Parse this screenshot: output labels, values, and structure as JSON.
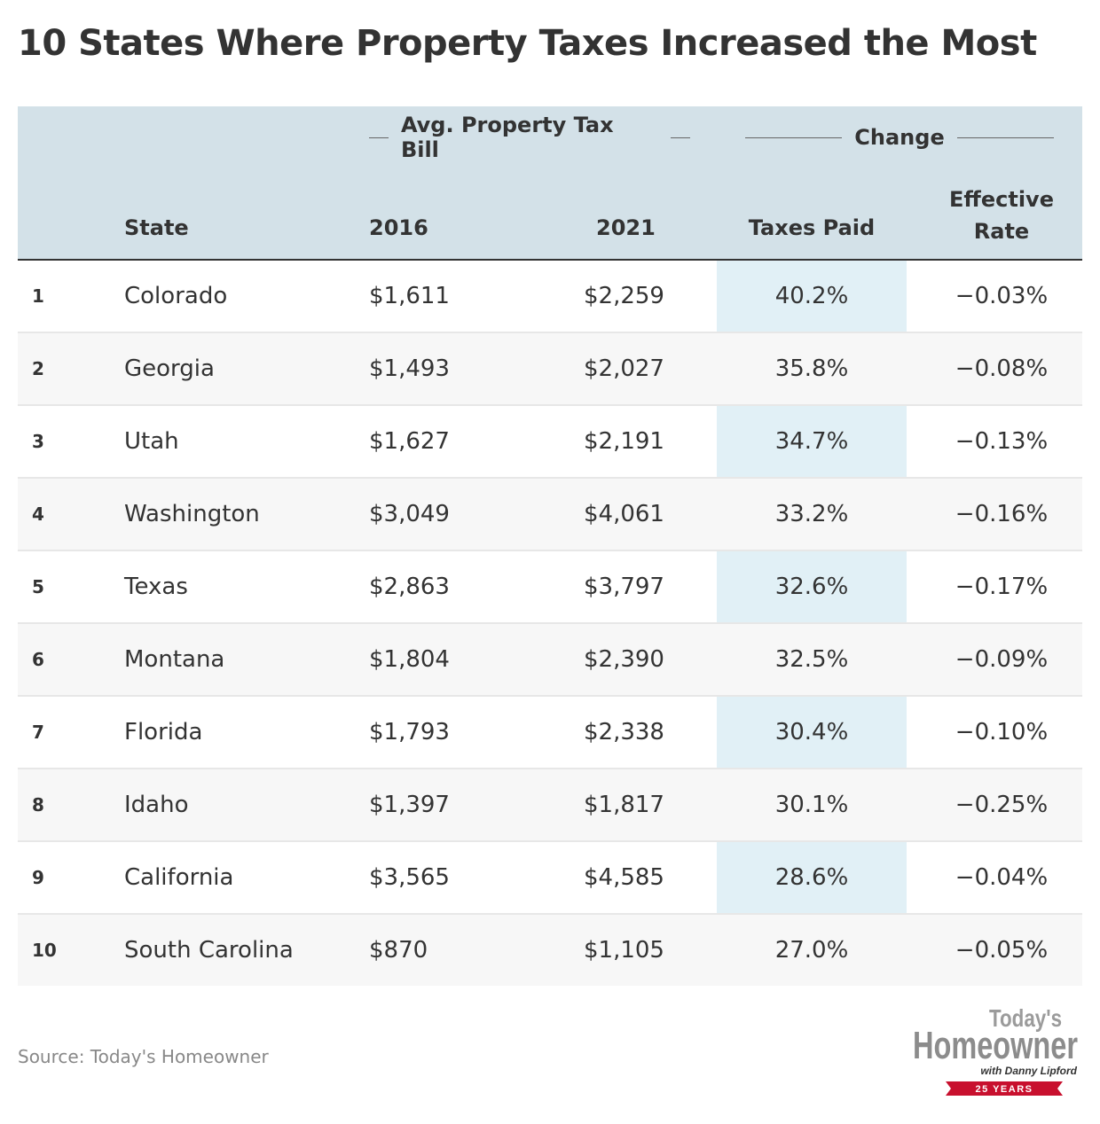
{
  "title": "10 States Where Property Taxes Increased the Most",
  "header": {
    "group_avg": "Avg. Property Tax Bill",
    "group_change": "Change",
    "col_state": "State",
    "col_2016": "2016",
    "col_2021": "2021",
    "col_taxes_paid": "Taxes Paid",
    "col_effective_1": "Effective",
    "col_effective_2": "Rate"
  },
  "chart_data": {
    "type": "table",
    "title": "10 States Where Property Taxes Increased the Most",
    "columns": [
      "State",
      "2016",
      "2021",
      "Taxes Paid",
      "Effective Rate"
    ],
    "rows": [
      {
        "rank": "1",
        "state": "Colorado",
        "y2016": "$1,611",
        "y2021": "$2,259",
        "taxes_paid": "40.2%",
        "effective_rate": "−0.03%"
      },
      {
        "rank": "2",
        "state": "Georgia",
        "y2016": "$1,493",
        "y2021": "$2,027",
        "taxes_paid": "35.8%",
        "effective_rate": "−0.08%"
      },
      {
        "rank": "3",
        "state": "Utah",
        "y2016": "$1,627",
        "y2021": "$2,191",
        "taxes_paid": "34.7%",
        "effective_rate": "−0.13%"
      },
      {
        "rank": "4",
        "state": "Washington",
        "y2016": "$3,049",
        "y2021": "$4,061",
        "taxes_paid": "33.2%",
        "effective_rate": "−0.16%"
      },
      {
        "rank": "5",
        "state": "Texas",
        "y2016": "$2,863",
        "y2021": "$3,797",
        "taxes_paid": "32.6%",
        "effective_rate": "−0.17%"
      },
      {
        "rank": "6",
        "state": "Montana",
        "y2016": "$1,804",
        "y2021": "$2,390",
        "taxes_paid": "32.5%",
        "effective_rate": "−0.09%"
      },
      {
        "rank": "7",
        "state": "Florida",
        "y2016": "$1,793",
        "y2021": "$2,338",
        "taxes_paid": "30.4%",
        "effective_rate": "−0.10%"
      },
      {
        "rank": "8",
        "state": "Idaho",
        "y2016": "$1,397",
        "y2021": "$1,817",
        "taxes_paid": "30.1%",
        "effective_rate": "−0.25%"
      },
      {
        "rank": "9",
        "state": "California",
        "y2016": "$3,565",
        "y2021": "$4,585",
        "taxes_paid": "28.6%",
        "effective_rate": "−0.04%"
      },
      {
        "rank": "10",
        "state": "South Carolina",
        "y2016": "$870",
        "y2021": "$1,105",
        "taxes_paid": "27.0%",
        "effective_rate": "−0.05%"
      }
    ]
  },
  "source": "Source: Today's Homeowner",
  "logo": {
    "line1": "Today's",
    "line2": "Homeowner",
    "line3": "with Danny Lipford",
    "banner": "25 YEARS"
  },
  "colors": {
    "header_bg": "#d3e1e8",
    "highlight_col": "#e1f0f6",
    "alt_row": "#f7f7f7",
    "text": "#333333",
    "logo_red": "#c8102e"
  }
}
